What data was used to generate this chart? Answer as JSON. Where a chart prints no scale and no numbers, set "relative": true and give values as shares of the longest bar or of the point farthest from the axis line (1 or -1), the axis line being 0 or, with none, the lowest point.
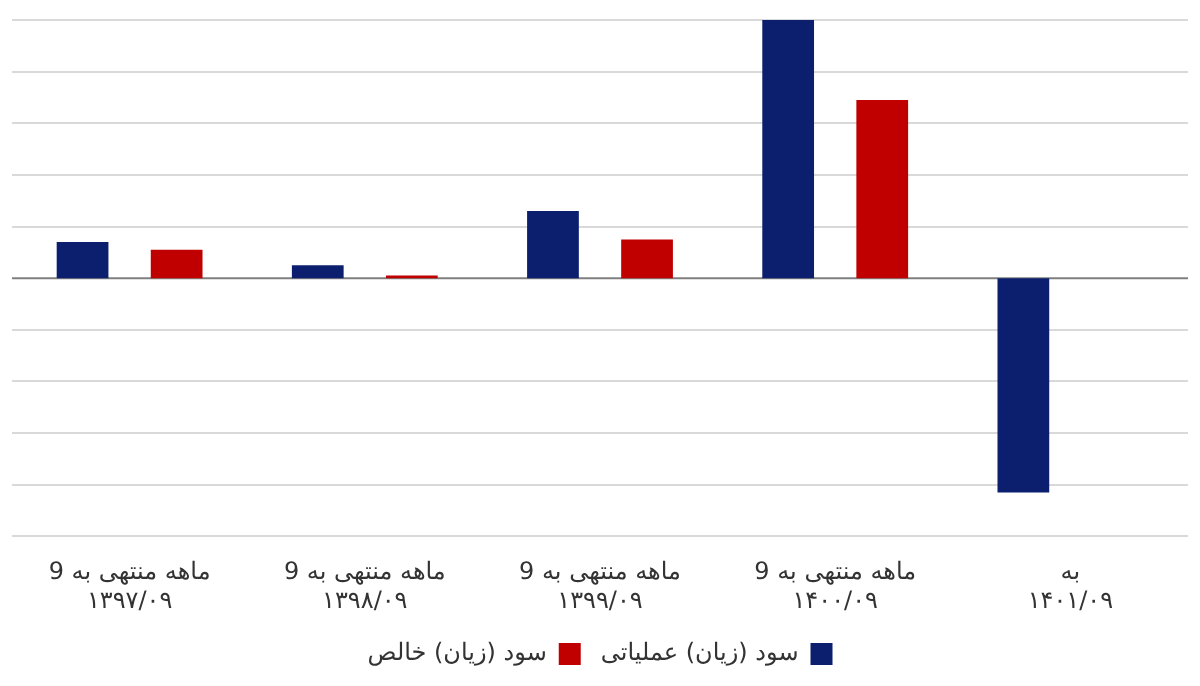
{
  "chart_data": {
    "type": "bar",
    "relative": true,
    "grid": "y",
    "legend": "bottom",
    "categories": [
      "9 ماهه منتهی به ۱۳۹۷/۰۹",
      "9 ماهه منتهی به ۱۳۹۸/۰۹",
      "9 ماهه منتهی به ۱۳۹۹/۰۹",
      "9 ماهه منتهی به ۱۴۰۰/۰۹",
      "به ۱۴۰۱/۰۹"
    ],
    "series": [
      {
        "name": "سود (زیان) عملیاتی",
        "color": "#0c1f6e",
        "values": [
          0.14,
          0.05,
          0.26,
          1,
          -0.83
        ]
      },
      {
        "name": "سود (زیان) خالص",
        "color": "#c00000",
        "values": [
          0.11,
          0.01,
          0.15,
          0.69,
          null
        ]
      }
    ]
  }
}
